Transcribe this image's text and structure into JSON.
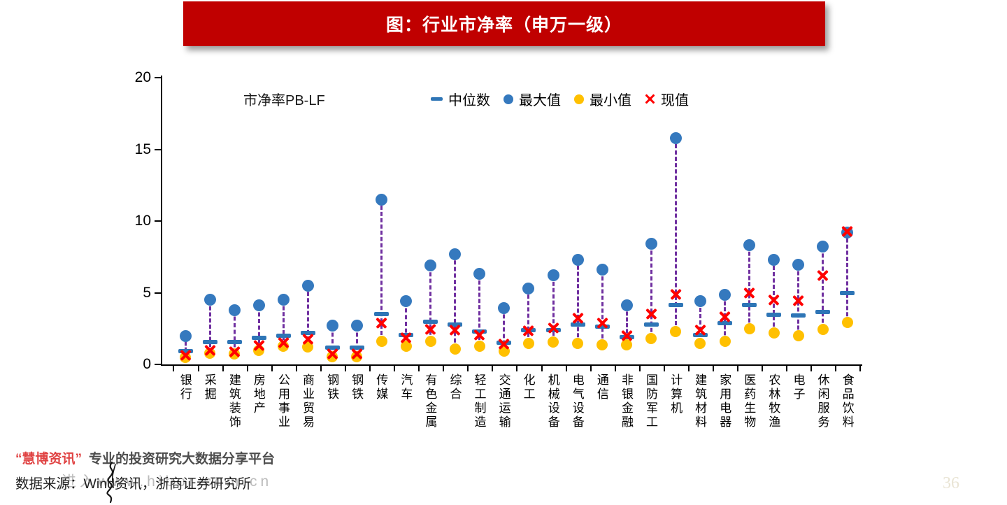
{
  "title": "图：行业市净率（申万一级）",
  "chart_data": {
    "type": "scatter",
    "subtitle_label": "市净率PB-LF",
    "ylim": [
      0,
      20
    ],
    "yticks": [
      0,
      5,
      10,
      15,
      20
    ],
    "grid": false,
    "legend_position": "top",
    "legend": [
      {
        "name": "中位数",
        "marker": "dash",
        "color": "#2E75B6"
      },
      {
        "name": "最大值",
        "marker": "dot",
        "color": "#3579BE"
      },
      {
        "name": "最小值",
        "marker": "dot",
        "color": "#FFC000"
      },
      {
        "name": "现值",
        "marker": "x",
        "color": "#FF0000"
      }
    ],
    "range_line_color": "#7030A0",
    "categories": [
      "银行",
      "采掘",
      "建筑装饰",
      "房地产",
      "公用事业",
      "商业贸易",
      "钢铁",
      "钢铁",
      "传媒",
      "汽车",
      "有色金属",
      "综合",
      "轻工制造",
      "交通运输",
      "化工",
      "机械设备",
      "电气设备",
      "通信",
      "非银金融",
      "国防军工",
      "计算机",
      "建筑材料",
      "家用电器",
      "医药生物",
      "农林牧渔",
      "电子",
      "休闲服务",
      "食品饮料"
    ],
    "series": [
      {
        "name": "中位数",
        "values": [
          0.95,
          1.55,
          1.55,
          1.85,
          2.0,
          2.2,
          1.15,
          1.15,
          3.5,
          2.05,
          3.0,
          2.8,
          2.3,
          1.5,
          2.4,
          2.4,
          2.8,
          2.65,
          1.9,
          2.8,
          4.15,
          2.05,
          2.9,
          4.15,
          3.45,
          3.4,
          3.65,
          5.0
        ]
      },
      {
        "name": "最大值",
        "values": [
          2.0,
          4.5,
          3.8,
          4.1,
          4.5,
          5.5,
          2.7,
          2.7,
          11.5,
          4.4,
          6.9,
          7.7,
          6.3,
          3.95,
          5.3,
          6.2,
          7.3,
          6.6,
          4.1,
          8.4,
          15.8,
          4.4,
          4.85,
          8.3,
          7.3,
          6.95,
          8.2,
          9.2
        ]
      },
      {
        "name": "最小值",
        "values": [
          0.5,
          0.8,
          0.75,
          1.0,
          1.25,
          1.2,
          0.55,
          0.55,
          1.6,
          1.25,
          1.6,
          1.05,
          1.25,
          0.95,
          1.45,
          1.55,
          1.45,
          1.35,
          1.35,
          1.8,
          2.3,
          1.45,
          1.6,
          2.5,
          2.2,
          2.0,
          2.45,
          2.95
        ]
      },
      {
        "name": "现值",
        "values": [
          0.65,
          1.0,
          0.9,
          1.3,
          1.5,
          1.75,
          0.75,
          0.75,
          2.9,
          1.85,
          2.45,
          2.4,
          2.05,
          1.4,
          2.35,
          2.55,
          3.2,
          2.9,
          2.0,
          3.5,
          4.9,
          2.4,
          3.3,
          5.0,
          4.5,
          4.45,
          6.2,
          9.25
        ]
      }
    ]
  },
  "footer": {
    "brand": "“慧博资讯”",
    "brand_tagline": "专业的投资研究大数据分享平台",
    "source": "数据来源：Wind资讯，浙商证券研究所",
    "watermark": "进入www.hibor.com.cn",
    "page_number": "36"
  }
}
